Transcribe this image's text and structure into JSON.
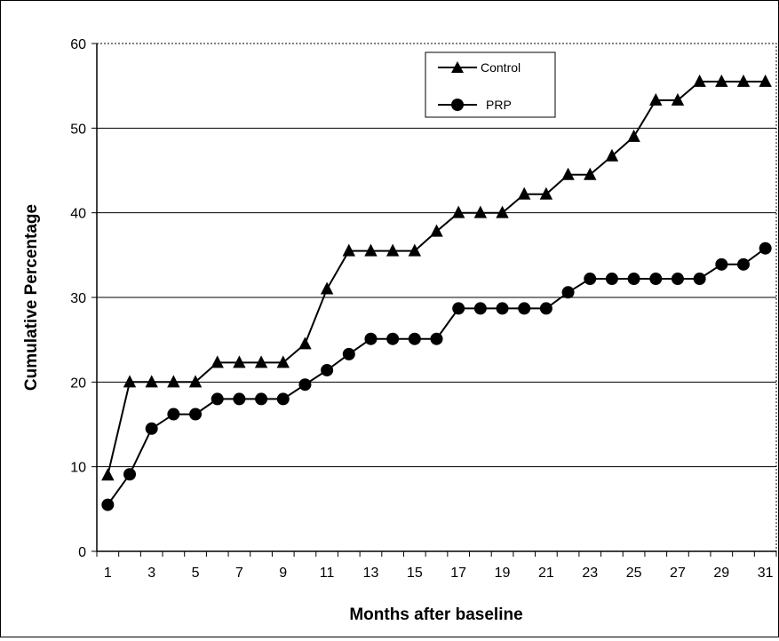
{
  "chart_data": {
    "type": "line",
    "xlabel": "Months after baseline",
    "ylabel": "Cumulative Percentage",
    "x": [
      1,
      2,
      3,
      4,
      5,
      6,
      7,
      8,
      9,
      10,
      11,
      12,
      13,
      14,
      15,
      16,
      17,
      18,
      19,
      20,
      21,
      22,
      23,
      24,
      25,
      26,
      27,
      28,
      29,
      30,
      31
    ],
    "xticks": [
      "1",
      "3",
      "5",
      "7",
      "9",
      "11",
      "13",
      "15",
      "17",
      "19",
      "21",
      "23",
      "25",
      "27",
      "29",
      "31"
    ],
    "ylim": [
      0,
      60
    ],
    "yticks": [
      "0",
      "10",
      "20",
      "30",
      "40",
      "50",
      "60"
    ],
    "grid": true,
    "legend_position": "top-center",
    "series": [
      {
        "name": "Control",
        "marker": "triangle",
        "color": "#000000",
        "values": [
          9.0,
          20.0,
          20.0,
          20.0,
          20.0,
          22.3,
          22.3,
          22.3,
          22.3,
          24.5,
          31.0,
          35.5,
          35.5,
          35.5,
          35.5,
          37.8,
          40.0,
          40.0,
          40.0,
          42.2,
          42.2,
          44.5,
          44.5,
          46.7,
          49.0,
          53.3,
          53.3,
          55.5,
          55.5,
          55.5,
          55.5
        ]
      },
      {
        "name": "PRP",
        "marker": "circle",
        "color": "#000000",
        "values": [
          5.5,
          9.1,
          14.5,
          16.2,
          16.2,
          18.0,
          18.0,
          18.0,
          18.0,
          19.7,
          21.4,
          23.3,
          25.1,
          25.1,
          25.1,
          25.1,
          28.7,
          28.7,
          28.7,
          28.7,
          28.7,
          30.6,
          32.2,
          32.2,
          32.2,
          32.2,
          32.2,
          32.2,
          33.9,
          33.9,
          35.8
        ]
      }
    ]
  }
}
